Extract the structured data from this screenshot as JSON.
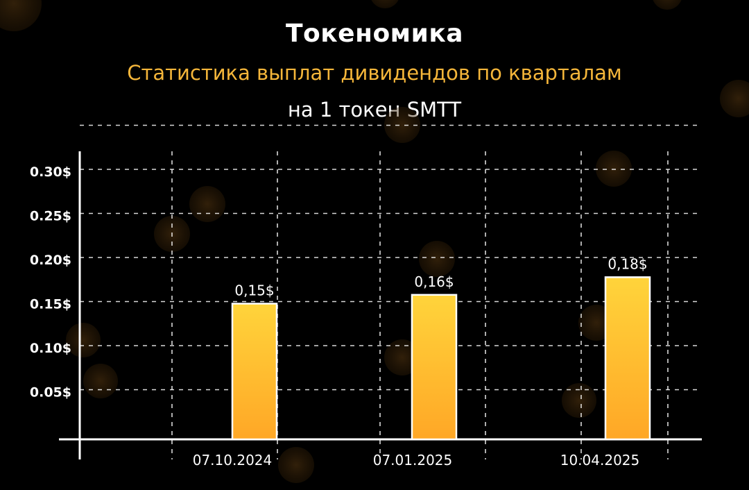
{
  "header": {
    "title": "Токеномика",
    "subtitle": "Статистика выплат дивидендов по кварталам",
    "subtitle2": "на 1 токен SMTT"
  },
  "colors": {
    "background": "#000000",
    "accent": "#f5b63a",
    "bar_top": "#ffd43b",
    "bar_bottom": "#ffa726",
    "bar_border": "#ffffff",
    "grid": "#ffffff",
    "text": "#ffffff"
  },
  "chart_data": {
    "type": "bar",
    "categories": [
      "07.10.2024",
      "07.01.2025",
      "10.04.2025"
    ],
    "values": [
      0.15,
      0.16,
      0.18
    ],
    "value_labels": [
      "0,15$",
      "0,16$",
      "0,18$"
    ],
    "yticks": [
      0.05,
      0.1,
      0.15,
      0.2,
      0.25,
      0.3
    ],
    "ytick_labels": [
      "0.05$",
      "0.10$",
      "0.15$",
      "0.20$",
      "0.25$",
      "0.30$"
    ],
    "ylim": [
      0,
      0.3
    ],
    "xlabel": "",
    "ylabel": "",
    "grid": true,
    "legend": "none"
  }
}
